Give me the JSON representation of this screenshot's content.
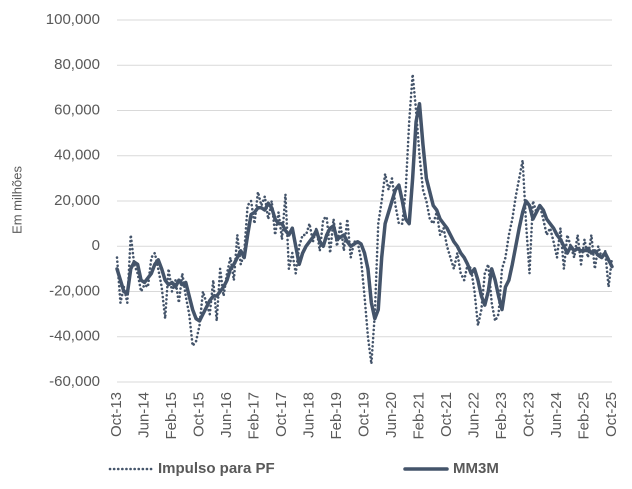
{
  "chart_data": {
    "type": "line",
    "y_label": "Em milhões",
    "categories": [
      "Oct-13",
      null,
      null,
      null,
      null,
      null,
      null,
      null,
      "Jun-14",
      null,
      null,
      null,
      null,
      null,
      null,
      null,
      "Feb-15",
      null,
      null,
      null,
      null,
      null,
      null,
      null,
      "Oct-15",
      null,
      null,
      null,
      null,
      null,
      null,
      null,
      "Jun-16",
      null,
      null,
      null,
      null,
      null,
      null,
      null,
      "Feb-17",
      null,
      null,
      null,
      null,
      null,
      null,
      null,
      "Oct-17",
      null,
      null,
      null,
      null,
      null,
      null,
      null,
      "Jun-18",
      null,
      null,
      null,
      null,
      null,
      null,
      null,
      "Feb-19",
      null,
      null,
      null,
      null,
      null,
      null,
      null,
      "Oct-19",
      null,
      null,
      null,
      null,
      null,
      null,
      null,
      "Jun-20",
      null,
      null,
      null,
      null,
      null,
      null,
      null,
      "Feb-21",
      null,
      null,
      null,
      null,
      null,
      null,
      null,
      "Oct-21",
      null,
      null,
      null,
      null,
      null,
      null,
      null,
      "Jun-22",
      null,
      null,
      null,
      null,
      null,
      null,
      null,
      "Feb-23",
      null,
      null,
      null,
      null,
      null,
      null,
      null,
      "Oct-23",
      null,
      null,
      null,
      null,
      null,
      null,
      null,
      "Jun-24",
      null,
      null,
      null,
      null,
      null,
      null,
      null,
      "Feb-25",
      null,
      null,
      null,
      null,
      null,
      null,
      null,
      "Oct-25"
    ],
    "series": [
      {
        "name": "Impulso para PF",
        "color": "#44546a",
        "dash": "dotted",
        "values": [
          -5000,
          -25000,
          -18000,
          -25000,
          5000,
          -8000,
          -12000,
          -20000,
          -17000,
          -18000,
          -5000,
          -3000,
          -10000,
          -18000,
          -32000,
          -10000,
          -20000,
          -15000,
          -25000,
          -12000,
          -22000,
          -30000,
          -44000,
          -42000,
          -35000,
          -20000,
          -25000,
          -30000,
          -15000,
          -33000,
          -10000,
          -22000,
          -12000,
          -5000,
          -15000,
          5000,
          -8000,
          -3000,
          18000,
          20000,
          10000,
          24000,
          18000,
          22000,
          12000,
          20000,
          5000,
          15000,
          3000,
          23000,
          -10000,
          -3000,
          -12000,
          0,
          5000,
          5000,
          10000,
          2000,
          8000,
          -2000,
          12000,
          13000,
          -3000,
          12000,
          0,
          10000,
          -2000,
          12000,
          -5000,
          2000,
          2000,
          -6000,
          -22000,
          -40000,
          -52000,
          -30000,
          10000,
          20000,
          32000,
          25000,
          30000,
          18000,
          10000,
          10000,
          25000,
          55000,
          76000,
          60000,
          40000,
          25000,
          20000,
          12000,
          10000,
          15000,
          5000,
          8000,
          0,
          -5000,
          -10000,
          -3000,
          -12000,
          -15000,
          -8000,
          -10000,
          -20000,
          -35000,
          -28000,
          -12000,
          -8000,
          -25000,
          -33000,
          -30000,
          -10000,
          -5000,
          5000,
          12000,
          22000,
          30000,
          38000,
          10000,
          -12000,
          20000,
          15000,
          18000,
          12000,
          5000,
          8000,
          2000,
          -5000,
          8000,
          -10000,
          5000,
          0,
          -5000,
          5000,
          -8000,
          3000,
          -5000,
          5000,
          -10000,
          0,
          -5000,
          -2000,
          -18000,
          -5000
        ]
      },
      {
        "name": "MM3M",
        "color": "#44546a",
        "dash": "solid",
        "values": [
          -10000,
          -15000,
          -20000,
          -21000,
          -10000,
          -7000,
          -8000,
          -15000,
          -16000,
          -14000,
          -12000,
          -8000,
          -6000,
          -10000,
          -15000,
          -17000,
          -16000,
          -18000,
          -15000,
          -17000,
          -16000,
          -22000,
          -28000,
          -32000,
          -33000,
          -30000,
          -27000,
          -24000,
          -22000,
          -22000,
          -20000,
          -18000,
          -15000,
          -10000,
          -8000,
          -5000,
          -2000,
          -5000,
          5000,
          14000,
          15000,
          17000,
          17000,
          16000,
          19000,
          17000,
          12000,
          10000,
          10000,
          7000,
          5000,
          8000,
          0,
          -8000,
          -3000,
          0,
          2000,
          4000,
          7000,
          2000,
          0,
          5000,
          8000,
          9000,
          3000,
          4000,
          5000,
          2000,
          0,
          1000,
          2000,
          1000,
          -3000,
          -10000,
          -25000,
          -32000,
          -28000,
          -5000,
          10000,
          15000,
          20000,
          25000,
          27000,
          20000,
          12000,
          10000,
          30000,
          55000,
          63000,
          45000,
          30000,
          24000,
          18000,
          16000,
          12000,
          10000,
          8000,
          5000,
          2000,
          0,
          -3000,
          -5000,
          -8000,
          -12000,
          -10000,
          -15000,
          -22000,
          -26000,
          -20000,
          -10000,
          -15000,
          -22000,
          -28000,
          -18000,
          -15000,
          -8000,
          0,
          8000,
          15000,
          20000,
          18000,
          12000,
          15000,
          18000,
          16000,
          12000,
          10000,
          8000,
          5000,
          3000,
          0,
          -3000,
          0,
          -2000,
          -1000,
          -2000,
          -2000,
          -1000,
          -3000,
          -2000,
          -4000,
          -5000,
          -3000,
          -6000,
          -9000
        ]
      }
    ],
    "ylim": [
      -60000,
      100000
    ],
    "yticks": [
      {
        "value": -60000,
        "label": "-60,000"
      },
      {
        "value": -40000,
        "label": "-40,000"
      },
      {
        "value": -20000,
        "label": "-20,000"
      },
      0,
      {
        "value": 20000,
        "label": "20,000"
      },
      {
        "value": 40000,
        "label": "40,000"
      },
      {
        "value": 60000,
        "label": "60,000"
      },
      {
        "value": 80000,
        "label": "80,000"
      },
      {
        "value": 100000,
        "label": "100,000"
      }
    ],
    "grid": true,
    "legend": "bottom"
  }
}
